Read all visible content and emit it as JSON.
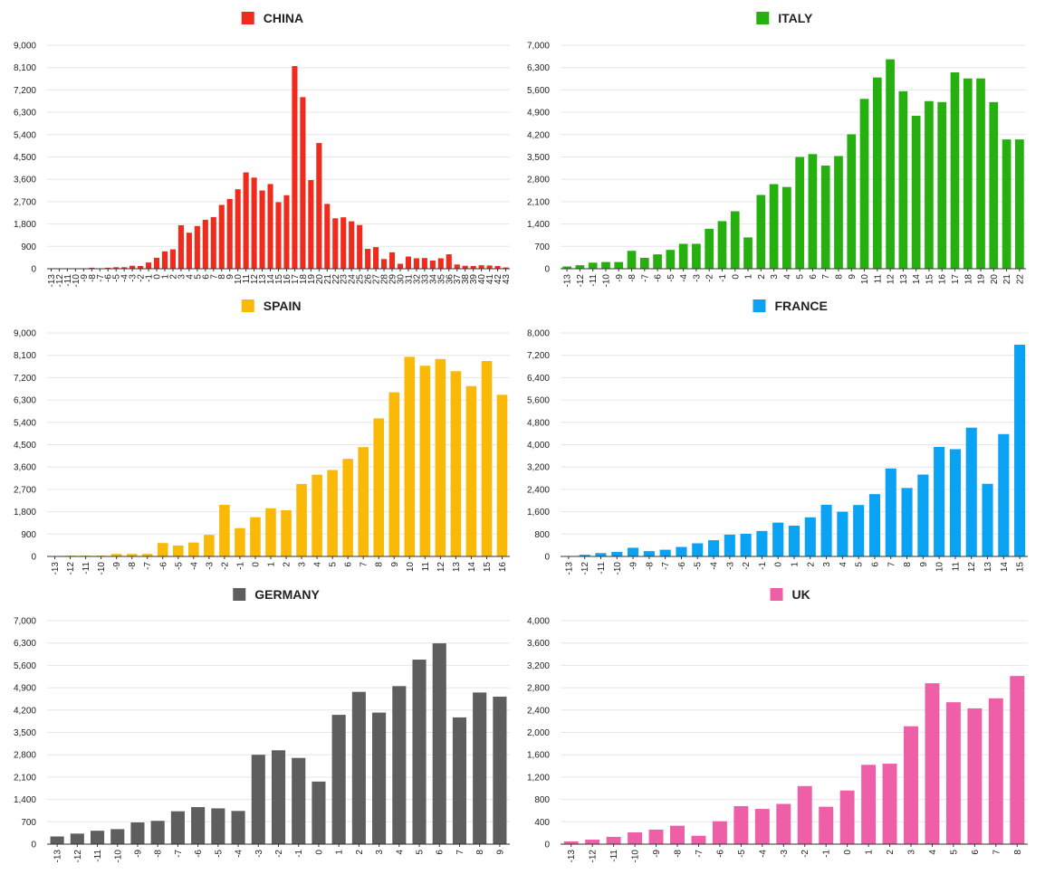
{
  "chart_data": [
    {
      "type": "bar",
      "title": "CHINA",
      "color": "#ee2b1c",
      "categories": [
        "-13",
        "-12",
        "-11",
        "-10",
        "-9",
        "-8",
        "-7",
        "-6",
        "-5",
        "-4",
        "-3",
        "-2",
        "-1",
        "0",
        "1",
        "2",
        "3",
        "4",
        "5",
        "6",
        "7",
        "8",
        "9",
        "10",
        "11",
        "12",
        "13",
        "14",
        "15",
        "16",
        "17",
        "18",
        "19",
        "20",
        "21",
        "22",
        "23",
        "24",
        "25",
        "26",
        "27",
        "28",
        "29",
        "30",
        "31",
        "32",
        "33",
        "34",
        "35",
        "36",
        "37",
        "38",
        "39",
        "40",
        "41",
        "42",
        "43"
      ],
      "values": [
        5,
        5,
        5,
        5,
        10,
        40,
        10,
        40,
        60,
        60,
        120,
        110,
        250,
        440,
        700,
        780,
        1750,
        1450,
        1720,
        1970,
        2080,
        2570,
        2810,
        3200,
        3880,
        3670,
        3150,
        3410,
        2680,
        2960,
        8160,
        6910,
        3570,
        5060,
        2610,
        2030,
        2070,
        1910,
        1760,
        800,
        870,
        390,
        660,
        200,
        490,
        420,
        430,
        330,
        420,
        580,
        170,
        120,
        110,
        140,
        130,
        110,
        50
      ],
      "ylim": [
        0,
        9000
      ],
      "yticks": [
        0,
        900,
        1800,
        2700,
        3600,
        4500,
        5400,
        6300,
        7200,
        8100,
        9000
      ],
      "xlabel": "",
      "ylabel": "",
      "grid": true,
      "legend": "top-center"
    },
    {
      "type": "bar",
      "title": "ITALY",
      "color": "#26b00f",
      "categories": [
        "-13",
        "-12",
        "-11",
        "-10",
        "-9",
        "-8",
        "-7",
        "-6",
        "-5",
        "-4",
        "-3",
        "-2",
        "-1",
        "0",
        "1",
        "2",
        "3",
        "4",
        "5",
        "6",
        "7",
        "8",
        "9",
        "10",
        "11",
        "12",
        "13",
        "14",
        "15",
        "16",
        "17",
        "18",
        "19",
        "20",
        "21",
        "22"
      ],
      "values": [
        70,
        110,
        190,
        210,
        210,
        560,
        340,
        450,
        590,
        780,
        780,
        1250,
        1490,
        1800,
        980,
        2310,
        2650,
        2560,
        3500,
        3590,
        3230,
        3530,
        4210,
        5320,
        5990,
        6560,
        5560,
        4790,
        5250,
        5220,
        6150,
        5960,
        5960,
        5220,
        4050,
        4050
      ],
      "ylim": [
        0,
        7000
      ],
      "yticks": [
        0,
        700,
        1400,
        2100,
        2800,
        3500,
        4200,
        4900,
        5600,
        6300,
        7000
      ],
      "xlabel": "",
      "ylabel": "",
      "grid": true,
      "legend": "top-center"
    },
    {
      "type": "bar",
      "title": "SPAIN",
      "color": "#fbb907",
      "categories": [
        "-13",
        "-12",
        "-11",
        "-10",
        "-9",
        "-8",
        "-7",
        "-6",
        "-5",
        "-4",
        "-3",
        "-2",
        "-1",
        "0",
        "1",
        "2",
        "3",
        "4",
        "5",
        "6",
        "7",
        "8",
        "9",
        "10",
        "11",
        "12",
        "13",
        "14",
        "15",
        "16"
      ],
      "values": [
        0,
        30,
        30,
        30,
        100,
        100,
        100,
        540,
        440,
        560,
        870,
        2080,
        1140,
        1580,
        1940,
        1860,
        2920,
        3290,
        3480,
        3930,
        4400,
        5560,
        6610,
        8040,
        7680,
        7950,
        7460,
        6860,
        7870,
        6510
      ],
      "ylim": [
        0,
        9000
      ],
      "yticks": [
        0,
        900,
        1800,
        2700,
        3600,
        4500,
        5400,
        6300,
        7200,
        8100,
        9000
      ],
      "xlabel": "",
      "ylabel": "",
      "grid": true,
      "legend": "top-center"
    },
    {
      "type": "bar",
      "title": "FRANCE",
      "color": "#0aa2f2",
      "categories": [
        "-13",
        "-12",
        "-11",
        "-10",
        "-9",
        "-8",
        "-7",
        "-6",
        "-5",
        "-4",
        "-3",
        "-2",
        "-1",
        "0",
        "1",
        "2",
        "3",
        "4",
        "5",
        "6",
        "7",
        "8",
        "9",
        "10",
        "11",
        "12",
        "13",
        "14",
        "15"
      ],
      "values": [
        0,
        60,
        120,
        160,
        310,
        190,
        240,
        340,
        470,
        580,
        780,
        810,
        910,
        1210,
        1100,
        1400,
        1850,
        1600,
        1840,
        2230,
        3150,
        2450,
        2930,
        3920,
        3840,
        4610,
        2600,
        4380,
        7580
      ],
      "ylim": [
        0,
        8000
      ],
      "yticks": [
        0,
        800,
        1600,
        2400,
        3200,
        4000,
        4800,
        5600,
        6400,
        7200,
        8000
      ],
      "xlabel": "",
      "ylabel": "",
      "grid": true,
      "legend": "top-center"
    },
    {
      "type": "bar",
      "title": "GERMANY",
      "color": "#5e5e5e",
      "categories": [
        "-13",
        "-12",
        "-11",
        "-10",
        "-9",
        "-8",
        "-7",
        "-6",
        "-5",
        "-4",
        "-3",
        "-2",
        "-1",
        "0",
        "1",
        "2",
        "3",
        "4",
        "5",
        "6",
        "7",
        "8",
        "9"
      ],
      "values": [
        240,
        330,
        420,
        470,
        680,
        730,
        1030,
        1160,
        1120,
        1040,
        2800,
        2940,
        2700,
        1960,
        4050,
        4770,
        4120,
        4950,
        5780,
        6290,
        3970,
        4750,
        4620
      ],
      "ylim": [
        0,
        7000
      ],
      "yticks": [
        0,
        700,
        1400,
        2100,
        2800,
        3500,
        4200,
        4900,
        5600,
        6300,
        7000
      ],
      "xlabel": "",
      "ylabel": "",
      "grid": true,
      "legend": "top-center"
    },
    {
      "type": "bar",
      "title": "UK",
      "color": "#ef5fa7",
      "categories": [
        "-13",
        "-12",
        "-11",
        "-10",
        "-9",
        "-8",
        "-7",
        "-6",
        "-5",
        "-4",
        "-3",
        "-2",
        "-1",
        "0",
        "1",
        "2",
        "3",
        "4",
        "5",
        "6",
        "7",
        "8"
      ],
      "values": [
        50,
        80,
        130,
        210,
        260,
        330,
        150,
        410,
        680,
        630,
        720,
        1040,
        670,
        960,
        1420,
        1440,
        2110,
        2880,
        2540,
        2430,
        2610,
        3010
      ],
      "ylim": [
        0,
        4000
      ],
      "yticks": [
        0,
        400,
        800,
        1200,
        1600,
        2000,
        2400,
        2800,
        3200,
        3600,
        4000
      ],
      "xlabel": "",
      "ylabel": "",
      "grid": true,
      "legend": "top-center"
    }
  ]
}
